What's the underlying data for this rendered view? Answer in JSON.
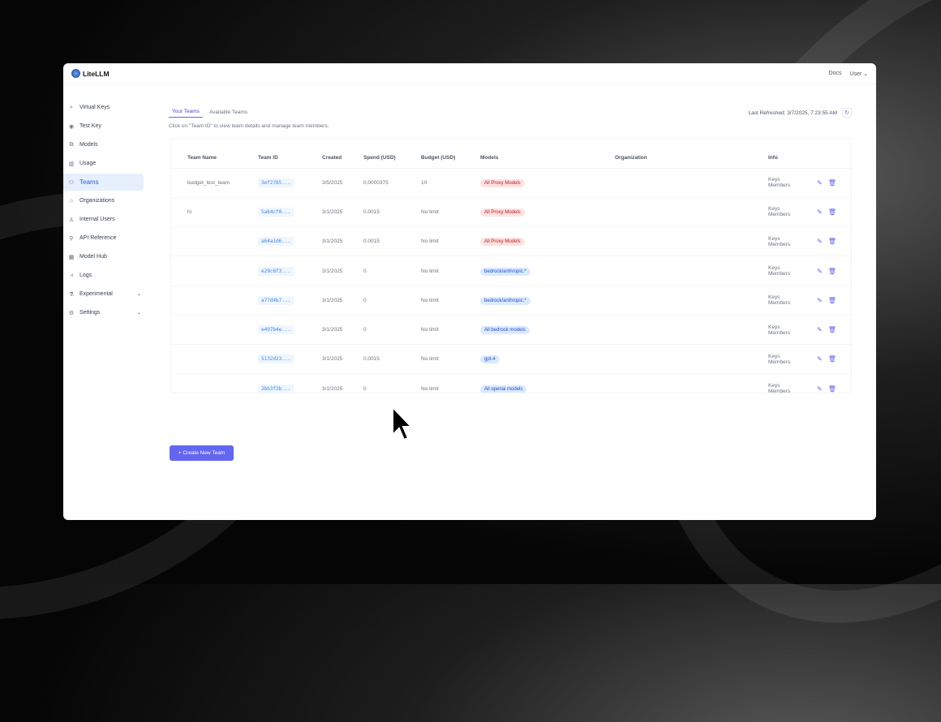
{
  "header": {
    "brand": "LiteLLM",
    "docs": "Docs",
    "user": "User"
  },
  "sidebar": {
    "items": [
      {
        "label": "Virtual Keys",
        "icon": "key-icon",
        "g": "⌕"
      },
      {
        "label": "Test Key",
        "icon": "play-circle-icon",
        "g": "◉"
      },
      {
        "label": "Models",
        "icon": "block-icon",
        "g": "⧉"
      },
      {
        "label": "Usage",
        "icon": "bar-chart-icon",
        "g": "▥"
      },
      {
        "label": "Teams",
        "icon": "team-icon",
        "g": "⚇",
        "active": true
      },
      {
        "label": "Organizations",
        "icon": "bank-icon",
        "g": "⌂"
      },
      {
        "label": "Internal Users",
        "icon": "user-icon",
        "g": "♙"
      },
      {
        "label": "API Reference",
        "icon": "api-icon",
        "g": "⚲"
      },
      {
        "label": "Model Hub",
        "icon": "appstore-icon",
        "g": "▦"
      },
      {
        "label": "Logs",
        "icon": "line-chart-icon",
        "g": "⩘"
      },
      {
        "label": "Experimental",
        "icon": "experiment-icon",
        "g": "⚗",
        "chev": true
      },
      {
        "label": "Settings",
        "icon": "setting-icon",
        "g": "⚙",
        "chev": true
      }
    ]
  },
  "tabs": [
    "Your Teams",
    "Available Teams"
  ],
  "hint": "Click on \"Team ID\" to view team details and manage team members.",
  "refresh": "Last Refreshed: 3/7/2025, 7:23:55 AM",
  "table": {
    "columns": [
      "Team Name",
      "Team ID",
      "Created",
      "Spend (USD)",
      "Budget (USD)",
      "Models",
      "Organization",
      "Info"
    ],
    "rows": [
      {
        "name": "budget_test_team",
        "id": "3ef2785...",
        "created": "3/5/2025",
        "spend": "0.0000375",
        "budget": "10",
        "model": "All Proxy Models",
        "tone": "red"
      },
      {
        "name": "hi",
        "id": "5a64cf0...",
        "created": "3/1/2025",
        "spend": "0.0015",
        "budget": "No limit",
        "model": "All Proxy Models",
        "tone": "red"
      },
      {
        "name": "",
        "id": "a64a1d6...",
        "created": "3/1/2025",
        "spend": "0.0015",
        "budget": "No limit",
        "model": "All Proxy Models",
        "tone": "red"
      },
      {
        "name": "",
        "id": "e29c6f3...",
        "created": "3/1/2025",
        "spend": "0",
        "budget": "No limit",
        "model": "bedrock/anthropic.*",
        "tone": "blue"
      },
      {
        "name": "",
        "id": "a77d4b7...",
        "created": "3/1/2025",
        "spend": "0",
        "budget": "No limit",
        "model": "bedrock/anthropic.*",
        "tone": "blue"
      },
      {
        "name": "",
        "id": "e497b4e...",
        "created": "3/1/2025",
        "spend": "0",
        "budget": "No limit",
        "model": "All bedrock models",
        "tone": "blue"
      },
      {
        "name": "",
        "id": "5132d23...",
        "created": "3/1/2025",
        "spend": "0.0015",
        "budget": "No limit",
        "model": "gpt-4",
        "tone": "blue"
      },
      {
        "name": "",
        "id": "2bb3f2b...",
        "created": "3/1/2025",
        "spend": "0",
        "budget": "No limit",
        "model": "All openai models",
        "tone": "blue"
      }
    ],
    "info": [
      "Keys",
      "Members"
    ]
  },
  "create_button": "+ Create New Team"
}
